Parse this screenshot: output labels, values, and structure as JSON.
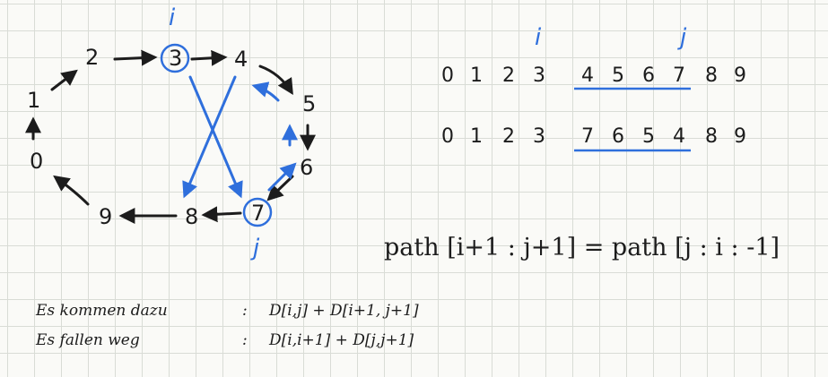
{
  "graph": {
    "nodes": [
      "0",
      "1",
      "2",
      "3",
      "4",
      "5",
      "6",
      "7",
      "8",
      "9"
    ],
    "label_i": "i",
    "label_j": "j"
  },
  "sequences": {
    "top_labels": {
      "i": "i",
      "j": "j"
    },
    "original": [
      "0",
      "1",
      "2",
      "3",
      "4",
      "5",
      "6",
      "7",
      "8",
      "9"
    ],
    "reversed": [
      "0",
      "1",
      "2",
      "3",
      "7",
      "6",
      "5",
      "4",
      "8",
      "9"
    ]
  },
  "formula": "path [i+1 : j+1] = path [j : i : -1]",
  "notes": [
    {
      "label": "Es kommen dazu",
      "sep": ":",
      "expr": "D[i,j] + D[i+1, j+1]"
    },
    {
      "label": "Es fallen weg",
      "sep": ":",
      "expr": "D[i,i+1] + D[j,j+1]"
    }
  ],
  "colors": {
    "ink": "#1c1c1c",
    "accent": "#2f6fdc",
    "grid": "#d9dcd6"
  }
}
